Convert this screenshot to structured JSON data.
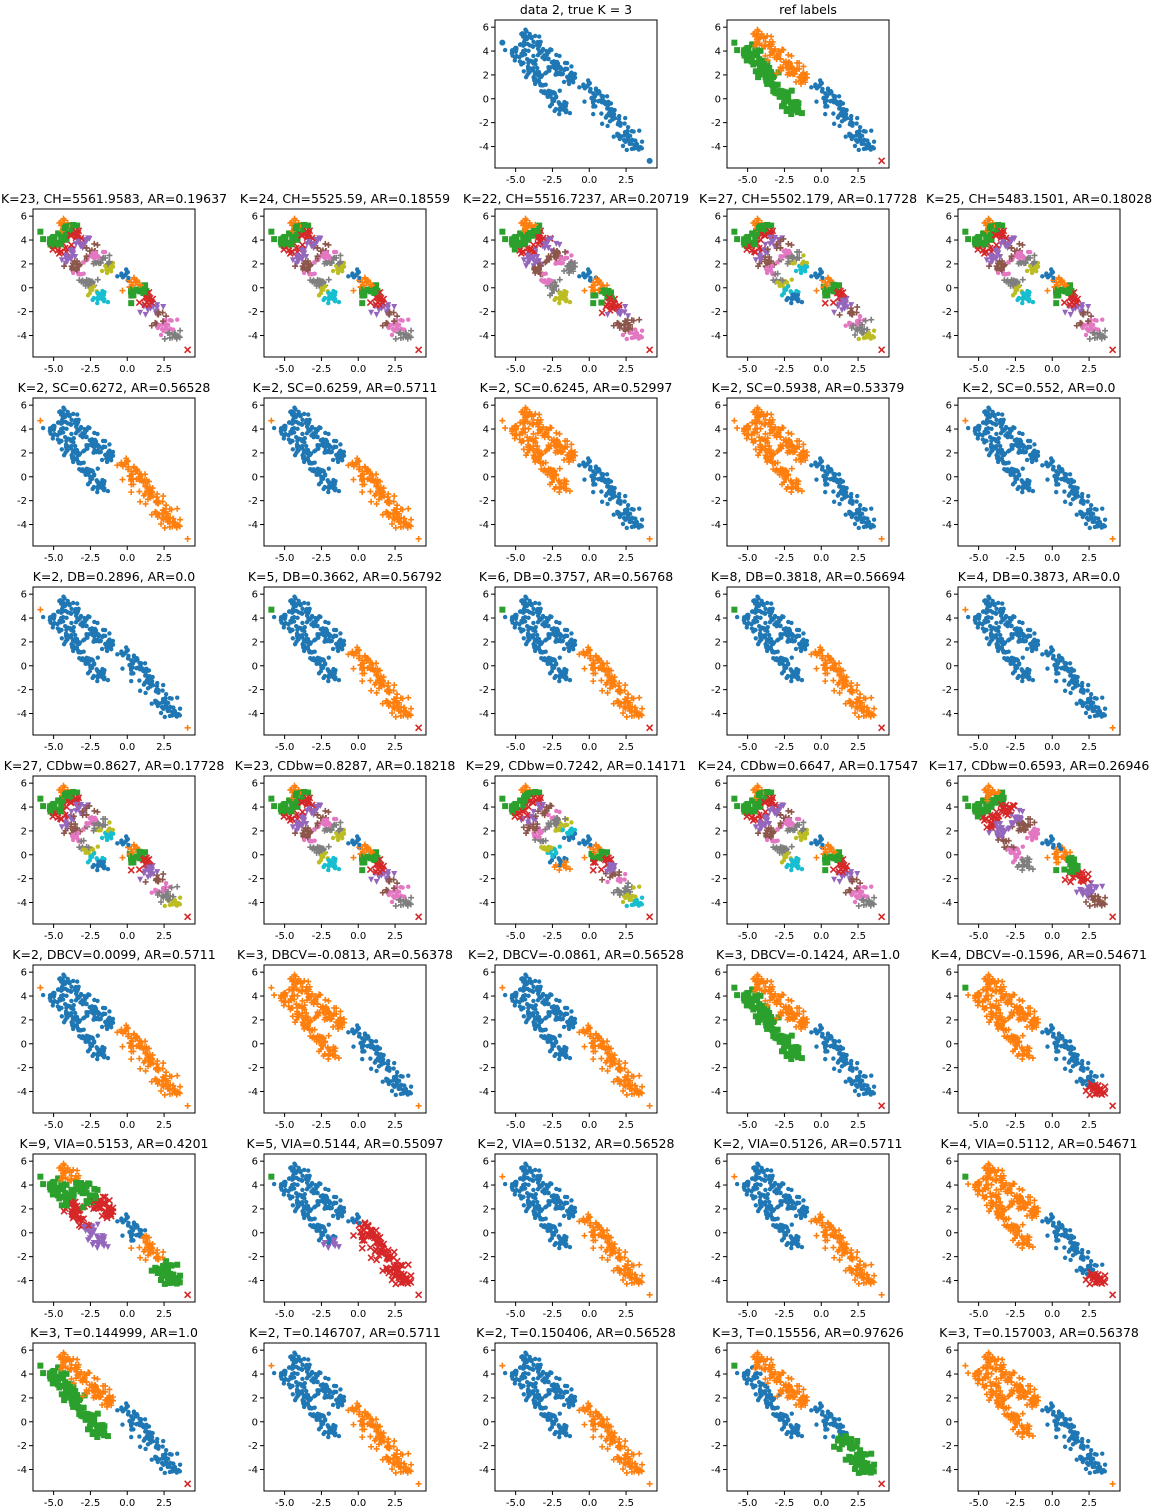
{
  "figure": {
    "rows": 8,
    "cols": 5,
    "palette": [
      "#1f77b4",
      "#ff7f0e",
      "#2ca02c",
      "#d62728",
      "#9467bd",
      "#8c564b",
      "#e377c2",
      "#7f7f7f",
      "#bcbd22",
      "#17becf"
    ],
    "xticks": [
      -5.0,
      -2.5,
      0.0,
      2.5
    ],
    "yticks": [
      6,
      4,
      2,
      0,
      -2,
      -4
    ],
    "xlim": [
      -6.4,
      4.6
    ],
    "ylim": [
      -5.8,
      6.6
    ]
  },
  "chart_data": [
    {
      "row": 0,
      "col": 2,
      "type": "scatter",
      "title": "data 2, true K = 3",
      "labeling": "single",
      "k": 1
    },
    {
      "row": 0,
      "col": 3,
      "type": "scatter",
      "title": "ref labels",
      "labeling": "truth",
      "k": 3
    },
    {
      "row": 1,
      "col": 0,
      "type": "scatter",
      "title": "K=23, CH=5561.9583, AR=0.19637",
      "labeling": "chunks",
      "k": 23
    },
    {
      "row": 1,
      "col": 1,
      "type": "scatter",
      "title": "K=24, CH=5525.59, AR=0.18559",
      "labeling": "chunks",
      "k": 24
    },
    {
      "row": 1,
      "col": 2,
      "type": "scatter",
      "title": "K=22, CH=5516.7237, AR=0.20719",
      "labeling": "chunks",
      "k": 22
    },
    {
      "row": 1,
      "col": 3,
      "type": "scatter",
      "title": "K=27, CH=5502.179, AR=0.17728",
      "labeling": "chunks",
      "k": 27
    },
    {
      "row": 1,
      "col": 4,
      "type": "scatter",
      "title": "K=25, CH=5483.1501, AR=0.18028",
      "labeling": "chunks",
      "k": 25
    },
    {
      "row": 2,
      "col": 0,
      "type": "scatter",
      "title": "K=2, SC=0.6272, AR=0.56528",
      "labeling": "left_right",
      "k": 2
    },
    {
      "row": 2,
      "col": 1,
      "type": "scatter",
      "title": "K=2, SC=0.6259, AR=0.5711",
      "labeling": "left_right",
      "k": 2
    },
    {
      "row": 2,
      "col": 2,
      "type": "scatter",
      "title": "K=2, SC=0.6245, AR=0.52997",
      "labeling": "left_right_swapped",
      "k": 2
    },
    {
      "row": 2,
      "col": 3,
      "type": "scatter",
      "title": "K=2, SC=0.5938, AR=0.53379",
      "labeling": "left_right_swapped",
      "k": 2
    },
    {
      "row": 2,
      "col": 4,
      "type": "scatter",
      "title": "K=2, SC=0.552, AR=0.0",
      "labeling": "all_but_outlier",
      "k": 2
    },
    {
      "row": 3,
      "col": 0,
      "type": "scatter",
      "title": "K=2, DB=0.2896, AR=0.0",
      "labeling": "all_but_outlier",
      "k": 2
    },
    {
      "row": 3,
      "col": 1,
      "type": "scatter",
      "title": "K=5, DB=0.3662, AR=0.56792",
      "labeling": "left_right_outliers",
      "k": 5
    },
    {
      "row": 3,
      "col": 2,
      "type": "scatter",
      "title": "K=6, DB=0.3757, AR=0.56768",
      "labeling": "left_right_outliers",
      "k": 6
    },
    {
      "row": 3,
      "col": 3,
      "type": "scatter",
      "title": "K=8, DB=0.3818, AR=0.56694",
      "labeling": "left_right_outliers",
      "k": 8
    },
    {
      "row": 3,
      "col": 4,
      "type": "scatter",
      "title": "K=4, DB=0.3873, AR=0.0",
      "labeling": "all_but_outlier",
      "k": 4
    },
    {
      "row": 4,
      "col": 0,
      "type": "scatter",
      "title": "K=27, CDbw=0.8627, AR=0.17728",
      "labeling": "chunks",
      "k": 27
    },
    {
      "row": 4,
      "col": 1,
      "type": "scatter",
      "title": "K=23, CDbw=0.8287, AR=0.18218",
      "labeling": "chunks",
      "k": 23
    },
    {
      "row": 4,
      "col": 2,
      "type": "scatter",
      "title": "K=29, CDbw=0.7242, AR=0.14171",
      "labeling": "chunks",
      "k": 29
    },
    {
      "row": 4,
      "col": 3,
      "type": "scatter",
      "title": "K=24, CDbw=0.6647, AR=0.17547",
      "labeling": "chunks",
      "k": 24
    },
    {
      "row": 4,
      "col": 4,
      "type": "scatter",
      "title": "K=17, CDbw=0.6593, AR=0.26946",
      "labeling": "chunks",
      "k": 17
    },
    {
      "row": 5,
      "col": 0,
      "type": "scatter",
      "title": "K=2, DBCV=0.0099, AR=0.5711",
      "labeling": "left_right",
      "k": 2
    },
    {
      "row": 5,
      "col": 1,
      "type": "scatter",
      "title": "K=3, DBCV=-0.0813, AR=0.56378",
      "labeling": "left_right_swapped",
      "k": 3
    },
    {
      "row": 5,
      "col": 2,
      "type": "scatter",
      "title": "K=2, DBCV=-0.0861, AR=0.56528",
      "labeling": "left_right",
      "k": 2
    },
    {
      "row": 5,
      "col": 3,
      "type": "scatter",
      "title": "K=3, DBCV=-0.1424, AR=1.0",
      "labeling": "truth",
      "k": 3
    },
    {
      "row": 5,
      "col": 4,
      "type": "scatter",
      "title": "K=4, DBCV=-0.1596, AR=0.54671",
      "labeling": "left_right_swapped_tail",
      "k": 4
    },
    {
      "row": 6,
      "col": 0,
      "type": "scatter",
      "title": "K=9, VIA=0.5153, AR=0.4201",
      "labeling": "chunks",
      "k": 9
    },
    {
      "row": 6,
      "col": 1,
      "type": "scatter",
      "title": "K=5, VIA=0.5144, AR=0.55097",
      "labeling": "via5",
      "k": 5
    },
    {
      "row": 6,
      "col": 2,
      "type": "scatter",
      "title": "K=2, VIA=0.5132, AR=0.56528",
      "labeling": "left_right",
      "k": 2
    },
    {
      "row": 6,
      "col": 3,
      "type": "scatter",
      "title": "K=2, VIA=0.5126, AR=0.5711",
      "labeling": "left_right",
      "k": 2
    },
    {
      "row": 6,
      "col": 4,
      "type": "scatter",
      "title": "K=4, VIA=0.5112, AR=0.54671",
      "labeling": "left_right_swapped_tail",
      "k": 4
    },
    {
      "row": 7,
      "col": 0,
      "type": "scatter",
      "title": "K=3, T=0.144999, AR=1.0",
      "labeling": "truth",
      "k": 3
    },
    {
      "row": 7,
      "col": 1,
      "type": "scatter",
      "title": "K=2, T=0.146707, AR=0.5711",
      "labeling": "left_right",
      "k": 2
    },
    {
      "row": 7,
      "col": 2,
      "type": "scatter",
      "title": "K=2, T=0.150406, AR=0.56528",
      "labeling": "left_right",
      "k": 2
    },
    {
      "row": 7,
      "col": 3,
      "type": "scatter",
      "title": "K=3, T=0.15556, AR=0.97626",
      "labeling": "split_lower",
      "k": 3
    },
    {
      "row": 7,
      "col": 4,
      "type": "scatter",
      "title": "K=3, T=0.157003, AR=0.56378",
      "labeling": "left_right_swapped",
      "k": 3
    }
  ]
}
